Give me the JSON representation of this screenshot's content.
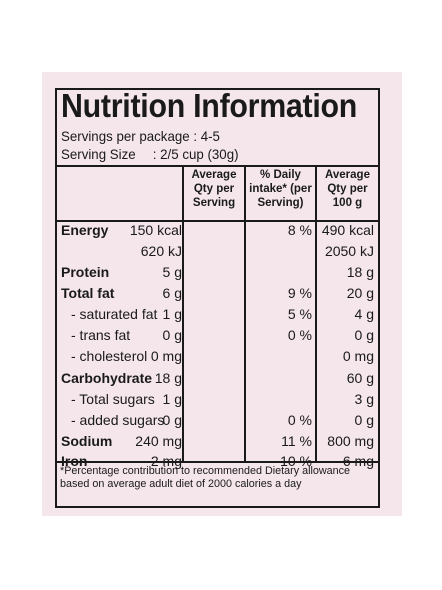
{
  "title": "Nutrition Information",
  "servings_per_package": "Servings per package : 4-5",
  "serving_size_label": "Serving Size",
  "serving_size_value": ": 2/5 cup (30g)",
  "headers": {
    "per_serving": "Average\nQty per\nServing",
    "daily_intake": "% Daily\nintake* (per\nServing)",
    "per_100g": "Average\nQty per\n100 g"
  },
  "rows": [
    {
      "label": "Energy",
      "style": "bold",
      "per_serving": "150 kcal",
      "daily": "8 %",
      "per_100g": "490 kcal"
    },
    {
      "label": "",
      "style": "plain",
      "per_serving": "620 kJ",
      "daily": "",
      "per_100g": "2050 kJ"
    },
    {
      "label": "Protein",
      "style": "bold",
      "per_serving": "5 g",
      "daily": "",
      "per_100g": "18 g"
    },
    {
      "label": "Total fat",
      "style": "bold",
      "per_serving": "6 g",
      "daily": "9 %",
      "per_100g": "20 g"
    },
    {
      "label": "- saturated fat",
      "style": "sub",
      "per_serving": "1 g",
      "daily": "5 %",
      "per_100g": "4 g"
    },
    {
      "label": "- trans fat",
      "style": "sub",
      "per_serving": "0 g",
      "daily": "0 %",
      "per_100g": "0 g"
    },
    {
      "label": "- cholesterol",
      "style": "sub",
      "per_serving": "0 mg",
      "daily": "",
      "per_100g": "0 mg"
    },
    {
      "label": "Carbohydrate",
      "style": "bold",
      "per_serving": "18 g",
      "daily": "",
      "per_100g": "60 g"
    },
    {
      "label": "- Total sugars",
      "style": "sub",
      "per_serving": "1 g",
      "daily": "",
      "per_100g": "3 g"
    },
    {
      "label": "- added sugars",
      "style": "sub",
      "per_serving": "0 g",
      "daily": "0 %",
      "per_100g": "0 g"
    },
    {
      "label": "Sodium",
      "style": "bold",
      "per_serving": "240 mg",
      "daily": "11 %",
      "per_100g": "800 mg"
    },
    {
      "label": "Iron",
      "style": "bold",
      "per_serving": "2 mg",
      "daily": "10 %",
      "per_100g": "6 mg"
    }
  ],
  "footnote": "*Percentage contribution to recommended Dietary allowance\nbased on average adult diet of 2000 calories a day",
  "colors": {
    "background": "#f4e6ea",
    "ink": "#1a1a1a"
  }
}
